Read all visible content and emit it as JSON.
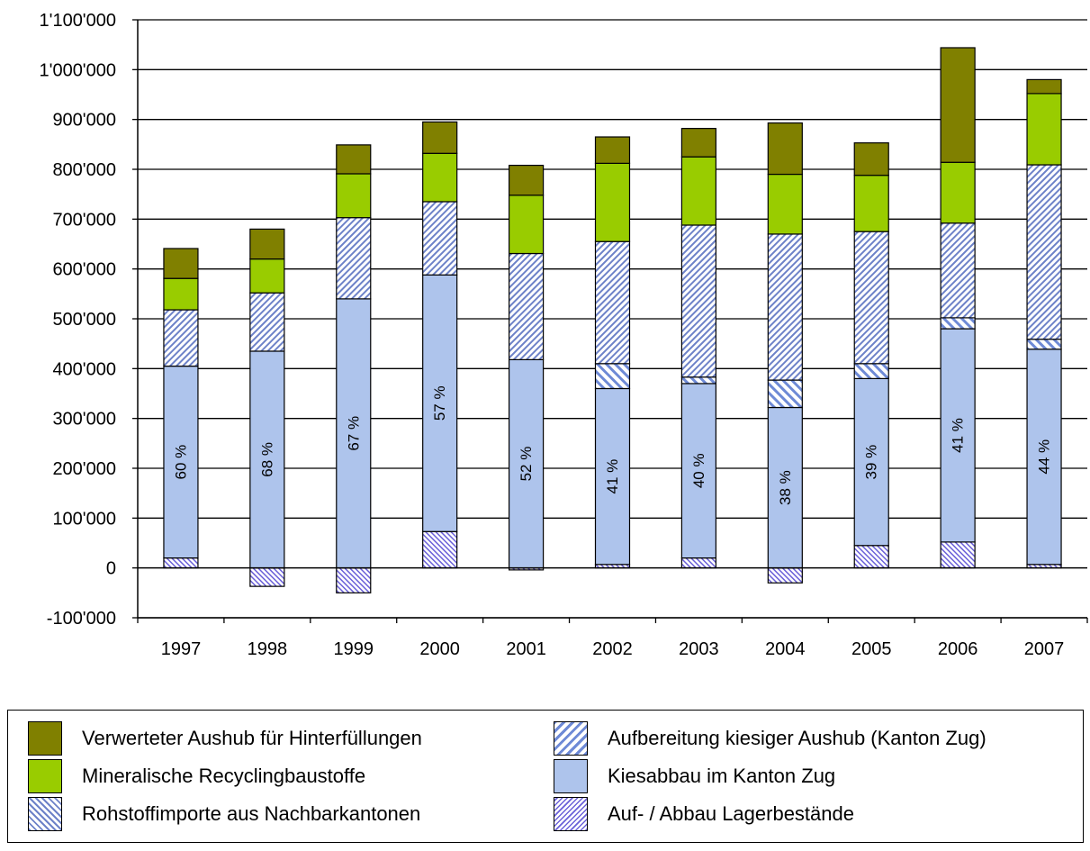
{
  "chart_data": {
    "type": "bar",
    "stacked": true,
    "categories": [
      "1997",
      "1998",
      "1999",
      "2000",
      "2001",
      "2002",
      "2003",
      "2004",
      "2005",
      "2006",
      "2007"
    ],
    "ylim": [
      -100000,
      1100000
    ],
    "y_ticks": [
      {
        "value": 1100000,
        "label": "1'100'000"
      },
      {
        "value": 1000000,
        "label": "1'000'000"
      },
      {
        "value": 900000,
        "label": "900'000"
      },
      {
        "value": 800000,
        "label": "800'000"
      },
      {
        "value": 700000,
        "label": "700'000"
      },
      {
        "value": 600000,
        "label": "600'000"
      },
      {
        "value": 500000,
        "label": "500'000"
      },
      {
        "value": 400000,
        "label": "400'000"
      },
      {
        "value": 300000,
        "label": "300'000"
      },
      {
        "value": 200000,
        "label": "200'000"
      },
      {
        "value": 100000,
        "label": "100'000"
      },
      {
        "value": 0,
        "label": "0"
      },
      {
        "value": -100000,
        "label": "-100'000"
      }
    ],
    "grid": "horizontal",
    "legend_position": "bottom",
    "series": [
      {
        "key": "lager",
        "name": "Auf- / Abbau Lagerbestände",
        "color": "#6a60d8",
        "values": [
          20000,
          -37000,
          -50000,
          73000,
          -4000,
          7000,
          20000,
          -30000,
          45000,
          52000,
          7000
        ]
      },
      {
        "key": "kies",
        "name": "Kiesabbau im Kanton Zug",
        "color": "#aec4ec",
        "values": [
          385000,
          435000,
          540000,
          515000,
          418000,
          353000,
          350000,
          322000,
          335000,
          428000,
          432000
        ]
      },
      {
        "key": "aufber",
        "name": "Aufbereitung kiesiger Aushub (Kanton Zug)",
        "color": "#6e8ad6",
        "values": [
          0,
          0,
          0,
          0,
          0,
          50000,
          13000,
          55000,
          30000,
          22000,
          20000
        ]
      },
      {
        "key": "rohstoff",
        "name": "Rohstoffimporte aus Nachbarkantonen",
        "color": "#6d82c8",
        "values": [
          113000,
          117000,
          163000,
          147000,
          213000,
          245000,
          305000,
          293000,
          265000,
          190000,
          350000
        ]
      },
      {
        "key": "recyc",
        "name": "Mineralische Recyclingbaustoffe",
        "color": "#99cc00",
        "values": [
          63000,
          68000,
          88000,
          97000,
          117000,
          157000,
          137000,
          120000,
          113000,
          122000,
          143000
        ]
      },
      {
        "key": "aushub",
        "name": "Verwerteter Aushub für Hinterfüllungen",
        "color": "#808000",
        "values": [
          60000,
          60000,
          58000,
          63000,
          60000,
          53000,
          57000,
          103000,
          65000,
          230000,
          28000
        ]
      }
    ],
    "data_labels": [
      "60 %",
      "68 %",
      "67 %",
      "57 %",
      "52 %",
      "41 %",
      "40 %",
      "38 %",
      "39 %",
      "41 %",
      "44 %"
    ],
    "legend_order": [
      "aushub",
      "aufber",
      "recyc",
      "kies",
      "rohstoff",
      "lager"
    ]
  }
}
